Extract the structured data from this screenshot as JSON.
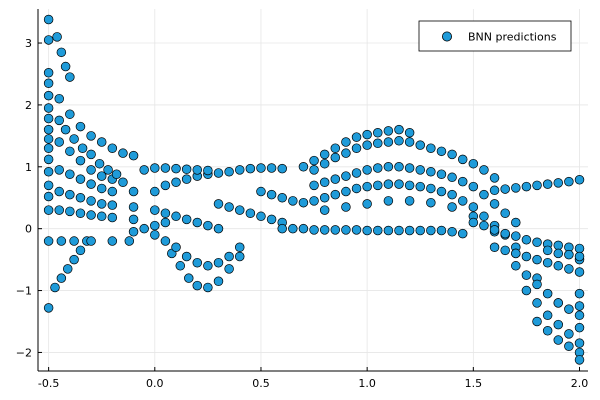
{
  "chart_data": {
    "type": "scatter",
    "title": "",
    "xlabel": "",
    "ylabel": "",
    "xlim": [
      -0.55,
      2.04
    ],
    "ylim": [
      -2.3,
      3.55
    ],
    "x_ticks": [
      -0.5,
      0.0,
      0.5,
      1.0,
      1.5,
      2.0
    ],
    "x_tick_labels": [
      "-0.5",
      "0.0",
      "0.5",
      "1.0",
      "1.5",
      "2.0"
    ],
    "y_ticks": [
      -2,
      -1,
      0,
      1,
      2,
      3
    ],
    "y_tick_labels": [
      "−2",
      "−1",
      "0",
      "1",
      "2",
      "3"
    ],
    "grid": true,
    "legend": {
      "position": "top-right",
      "entries": [
        "BNN predictions"
      ]
    },
    "series": [
      {
        "name": "BNN predictions",
        "color": "#1f9bd9",
        "edge_color": "#000000",
        "points": [
          [
            -0.5,
            3.38
          ],
          [
            -0.5,
            3.05
          ],
          [
            -0.46,
            3.1
          ],
          [
            -0.44,
            2.85
          ],
          [
            -0.42,
            2.62
          ],
          [
            -0.4,
            2.45
          ],
          [
            -0.5,
            2.52
          ],
          [
            -0.5,
            2.35
          ],
          [
            -0.5,
            2.15
          ],
          [
            -0.5,
            1.95
          ],
          [
            -0.5,
            1.78
          ],
          [
            -0.5,
            1.6
          ],
          [
            -0.5,
            1.45
          ],
          [
            -0.5,
            1.3
          ],
          [
            -0.5,
            1.12
          ],
          [
            -0.5,
            0.92
          ],
          [
            -0.5,
            0.7
          ],
          [
            -0.5,
            0.52
          ],
          [
            -0.5,
            0.3
          ],
          [
            -0.5,
            -0.2
          ],
          [
            -0.5,
            -1.28
          ],
          [
            -0.47,
            -0.95
          ],
          [
            -0.44,
            -0.8
          ],
          [
            -0.41,
            -0.65
          ],
          [
            -0.38,
            -0.5
          ],
          [
            -0.35,
            -0.35
          ],
          [
            -0.32,
            -0.2
          ],
          [
            -0.44,
            -0.2
          ],
          [
            -0.38,
            -0.2
          ],
          [
            -0.3,
            -0.2
          ],
          [
            -0.2,
            -0.2
          ],
          [
            -0.12,
            -0.2
          ],
          [
            -0.45,
            2.1
          ],
          [
            -0.4,
            1.85
          ],
          [
            -0.35,
            1.65
          ],
          [
            -0.3,
            1.5
          ],
          [
            -0.25,
            1.4
          ],
          [
            -0.2,
            1.3
          ],
          [
            -0.15,
            1.22
          ],
          [
            -0.1,
            1.18
          ],
          [
            -0.45,
            1.4
          ],
          [
            -0.4,
            1.25
          ],
          [
            -0.35,
            1.1
          ],
          [
            -0.3,
            0.95
          ],
          [
            -0.25,
            0.85
          ],
          [
            -0.2,
            0.8
          ],
          [
            -0.15,
            0.75
          ],
          [
            -0.45,
            0.95
          ],
          [
            -0.4,
            0.88
          ],
          [
            -0.35,
            0.8
          ],
          [
            -0.3,
            0.72
          ],
          [
            -0.25,
            0.65
          ],
          [
            -0.2,
            0.6
          ],
          [
            -0.45,
            0.6
          ],
          [
            -0.4,
            0.55
          ],
          [
            -0.35,
            0.5
          ],
          [
            -0.3,
            0.45
          ],
          [
            -0.25,
            0.4
          ],
          [
            -0.2,
            0.38
          ],
          [
            -0.45,
            0.3
          ],
          [
            -0.4,
            0.28
          ],
          [
            -0.35,
            0.25
          ],
          [
            -0.3,
            0.22
          ],
          [
            -0.25,
            0.2
          ],
          [
            -0.2,
            0.18
          ],
          [
            -0.45,
            1.75
          ],
          [
            -0.42,
            1.6
          ],
          [
            -0.38,
            1.45
          ],
          [
            -0.34,
            1.3
          ],
          [
            -0.3,
            1.2
          ],
          [
            -0.26,
            1.05
          ],
          [
            -0.22,
            0.95
          ],
          [
            -0.18,
            0.88
          ],
          [
            -0.1,
            0.6
          ],
          [
            -0.1,
            0.35
          ],
          [
            -0.1,
            0.15
          ],
          [
            -0.1,
            -0.05
          ],
          [
            -0.05,
            0.0
          ],
          [
            0.0,
            0.05
          ],
          [
            0.05,
            0.1
          ],
          [
            0.0,
            0.3
          ],
          [
            0.05,
            0.25
          ],
          [
            0.1,
            0.2
          ],
          [
            0.15,
            0.15
          ],
          [
            0.2,
            0.1
          ],
          [
            0.25,
            0.05
          ],
          [
            0.3,
            0.0
          ],
          [
            0.0,
            -0.1
          ],
          [
            0.05,
            -0.2
          ],
          [
            0.08,
            -0.4
          ],
          [
            0.12,
            -0.6
          ],
          [
            0.16,
            -0.8
          ],
          [
            0.2,
            -0.92
          ],
          [
            0.25,
            -0.95
          ],
          [
            0.3,
            -0.85
          ],
          [
            0.35,
            -0.65
          ],
          [
            0.4,
            -0.45
          ],
          [
            0.0,
            0.6
          ],
          [
            0.05,
            0.7
          ],
          [
            0.1,
            0.75
          ],
          [
            0.15,
            0.8
          ],
          [
            0.2,
            0.85
          ],
          [
            0.25,
            0.88
          ],
          [
            0.3,
            0.9
          ],
          [
            0.35,
            0.92
          ],
          [
            0.4,
            0.95
          ],
          [
            0.45,
            0.97
          ],
          [
            0.5,
            0.98
          ],
          [
            0.55,
            0.98
          ],
          [
            0.6,
            0.97
          ],
          [
            -0.05,
            0.95
          ],
          [
            0.0,
            0.98
          ],
          [
            0.05,
            0.98
          ],
          [
            0.1,
            0.97
          ],
          [
            0.15,
            0.96
          ],
          [
            0.2,
            0.95
          ],
          [
            0.25,
            0.94
          ],
          [
            0.1,
            -0.3
          ],
          [
            0.15,
            -0.45
          ],
          [
            0.2,
            -0.55
          ],
          [
            0.25,
            -0.6
          ],
          [
            0.3,
            -0.55
          ],
          [
            0.35,
            -0.45
          ],
          [
            0.4,
            -0.3
          ],
          [
            0.3,
            0.4
          ],
          [
            0.35,
            0.35
          ],
          [
            0.4,
            0.3
          ],
          [
            0.45,
            0.25
          ],
          [
            0.5,
            0.2
          ],
          [
            0.55,
            0.15
          ],
          [
            0.6,
            0.1
          ],
          [
            0.5,
            0.6
          ],
          [
            0.55,
            0.55
          ],
          [
            0.6,
            0.5
          ],
          [
            0.65,
            0.45
          ],
          [
            0.7,
            0.42
          ],
          [
            0.6,
            0.0
          ],
          [
            0.65,
            0.0
          ],
          [
            0.7,
            0.0
          ],
          [
            0.75,
            -0.02
          ],
          [
            0.8,
            -0.02
          ],
          [
            0.85,
            -0.02
          ],
          [
            0.9,
            -0.02
          ],
          [
            0.95,
            -0.02
          ],
          [
            1.0,
            -0.03
          ],
          [
            1.05,
            -0.03
          ],
          [
            1.1,
            -0.03
          ],
          [
            1.15,
            -0.03
          ],
          [
            1.2,
            -0.03
          ],
          [
            1.25,
            -0.03
          ],
          [
            1.3,
            -0.03
          ],
          [
            1.35,
            -0.03
          ],
          [
            1.4,
            -0.05
          ],
          [
            1.45,
            -0.08
          ],
          [
            0.7,
            1.0
          ],
          [
            0.75,
            1.1
          ],
          [
            0.8,
            1.2
          ],
          [
            0.85,
            1.3
          ],
          [
            0.9,
            1.4
          ],
          [
            0.95,
            1.48
          ],
          [
            1.0,
            1.52
          ],
          [
            1.05,
            1.55
          ],
          [
            1.1,
            1.58
          ],
          [
            1.15,
            1.6
          ],
          [
            1.2,
            1.55
          ],
          [
            0.75,
            0.95
          ],
          [
            0.8,
            1.05
          ],
          [
            0.85,
            1.15
          ],
          [
            0.9,
            1.22
          ],
          [
            0.95,
            1.3
          ],
          [
            1.0,
            1.35
          ],
          [
            1.05,
            1.38
          ],
          [
            1.1,
            1.4
          ],
          [
            1.15,
            1.42
          ],
          [
            1.2,
            1.4
          ],
          [
            1.25,
            1.35
          ],
          [
            1.3,
            1.3
          ],
          [
            1.35,
            1.25
          ],
          [
            1.4,
            1.2
          ],
          [
            1.45,
            1.12
          ],
          [
            1.5,
            1.05
          ],
          [
            1.55,
            0.95
          ],
          [
            1.6,
            0.82
          ],
          [
            0.75,
            0.7
          ],
          [
            0.8,
            0.75
          ],
          [
            0.85,
            0.8
          ],
          [
            0.9,
            0.85
          ],
          [
            0.95,
            0.9
          ],
          [
            1.0,
            0.95
          ],
          [
            1.05,
            0.98
          ],
          [
            1.1,
            1.0
          ],
          [
            1.15,
            1.0
          ],
          [
            1.2,
            0.98
          ],
          [
            1.25,
            0.95
          ],
          [
            1.3,
            0.92
          ],
          [
            1.35,
            0.88
          ],
          [
            1.4,
            0.83
          ],
          [
            1.45,
            0.76
          ],
          [
            1.5,
            0.68
          ],
          [
            1.55,
            0.55
          ],
          [
            1.6,
            0.4
          ],
          [
            1.65,
            0.25
          ],
          [
            1.7,
            0.1
          ],
          [
            0.75,
            0.45
          ],
          [
            0.8,
            0.5
          ],
          [
            0.85,
            0.55
          ],
          [
            0.9,
            0.6
          ],
          [
            0.95,
            0.65
          ],
          [
            1.0,
            0.68
          ],
          [
            1.05,
            0.7
          ],
          [
            1.1,
            0.72
          ],
          [
            1.15,
            0.72
          ],
          [
            1.2,
            0.7
          ],
          [
            1.25,
            0.68
          ],
          [
            1.3,
            0.65
          ],
          [
            1.35,
            0.6
          ],
          [
            1.4,
            0.55
          ],
          [
            1.45,
            0.45
          ],
          [
            1.5,
            0.35
          ],
          [
            1.55,
            0.2
          ],
          [
            1.6,
            0.05
          ],
          [
            1.65,
            -0.1
          ],
          [
            1.7,
            -0.3
          ],
          [
            0.8,
            0.3
          ],
          [
            0.9,
            0.35
          ],
          [
            1.0,
            0.4
          ],
          [
            1.1,
            0.45
          ],
          [
            1.2,
            0.45
          ],
          [
            1.3,
            0.42
          ],
          [
            1.4,
            0.35
          ],
          [
            1.5,
            0.2
          ],
          [
            1.6,
            -0.05
          ],
          [
            1.7,
            -0.4
          ],
          [
            1.8,
            -0.8
          ],
          [
            1.9,
            -1.2
          ],
          [
            2.0,
            -1.6
          ],
          [
            1.5,
            0.1
          ],
          [
            1.55,
            0.05
          ],
          [
            1.6,
            -0.02
          ],
          [
            1.65,
            -0.08
          ],
          [
            1.7,
            -0.12
          ],
          [
            1.75,
            -0.18
          ],
          [
            1.8,
            -0.22
          ],
          [
            1.85,
            -0.25
          ],
          [
            1.9,
            -0.27
          ],
          [
            1.95,
            -0.3
          ],
          [
            2.0,
            -0.32
          ],
          [
            1.6,
            0.62
          ],
          [
            1.65,
            0.64
          ],
          [
            1.7,
            0.66
          ],
          [
            1.75,
            0.68
          ],
          [
            1.8,
            0.7
          ],
          [
            1.85,
            0.72
          ],
          [
            1.9,
            0.74
          ],
          [
            1.95,
            0.76
          ],
          [
            2.0,
            0.79
          ],
          [
            1.6,
            -0.3
          ],
          [
            1.65,
            -0.35
          ],
          [
            1.7,
            -0.4
          ],
          [
            1.75,
            -0.45
          ],
          [
            1.8,
            -0.5
          ],
          [
            1.85,
            -0.55
          ],
          [
            1.9,
            -0.6
          ],
          [
            1.95,
            -0.65
          ],
          [
            2.0,
            -0.7
          ],
          [
            1.7,
            -0.6
          ],
          [
            1.75,
            -0.75
          ],
          [
            1.8,
            -0.9
          ],
          [
            1.85,
            -1.05
          ],
          [
            1.9,
            -1.2
          ],
          [
            1.95,
            -1.3
          ],
          [
            2.0,
            -1.4
          ],
          [
            1.75,
            -1.0
          ],
          [
            1.8,
            -1.2
          ],
          [
            1.85,
            -1.4
          ],
          [
            1.9,
            -1.55
          ],
          [
            1.95,
            -1.7
          ],
          [
            2.0,
            -1.85
          ],
          [
            1.8,
            -1.5
          ],
          [
            1.85,
            -1.65
          ],
          [
            1.9,
            -1.8
          ],
          [
            1.95,
            -1.9
          ],
          [
            2.0,
            -2.0
          ],
          [
            2.0,
            -2.12
          ],
          [
            2.0,
            -1.05
          ],
          [
            2.0,
            -1.25
          ],
          [
            2.0,
            -0.5
          ],
          [
            1.85,
            -0.35
          ],
          [
            1.9,
            -0.4
          ],
          [
            1.95,
            -0.42
          ],
          [
            2.0,
            -0.45
          ]
        ]
      }
    ]
  }
}
